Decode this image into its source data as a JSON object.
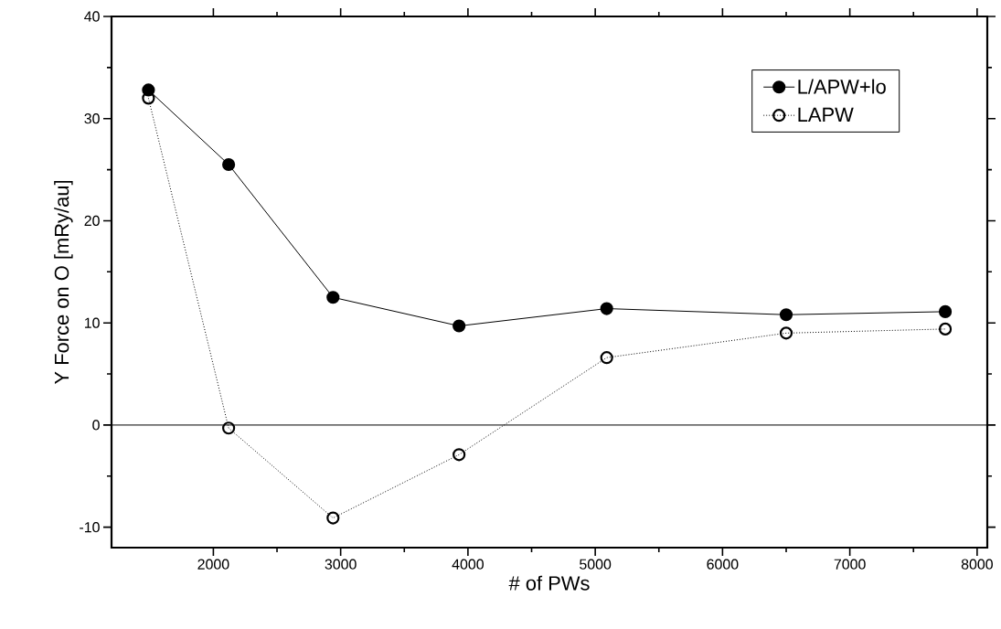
{
  "chart_data": {
    "type": "line",
    "xlabel": "# of PWs",
    "ylabel": "Y Force on O  [mRy/au]",
    "x": [
      1490,
      2120,
      2940,
      3930,
      5090,
      6500,
      7750
    ],
    "series": [
      {
        "name": "L/APW+lo",
        "color": "#000000",
        "marker": "circle",
        "line_style": "solid",
        "values": [
          32.8,
          25.5,
          12.5,
          9.7,
          11.4,
          10.8,
          11.1
        ]
      },
      {
        "name": "LAPW",
        "color": "#000000",
        "marker": "open circle",
        "line_style": "dotted",
        "values": [
          32.0,
          -0.3,
          -9.1,
          -2.9,
          6.6,
          9.0,
          9.4
        ]
      }
    ],
    "xlim": [
      1200,
      8080
    ],
    "ylim": [
      -12,
      40
    ],
    "xticks": [
      2000,
      3000,
      4000,
      5000,
      6000,
      7000,
      8000
    ],
    "yticks": [
      -10,
      0,
      10,
      20,
      30,
      40
    ],
    "ref_lines": [
      {
        "axis": "y",
        "value": 0,
        "color": "#000000",
        "line_style": "solid"
      }
    ],
    "grid": false,
    "legend": "top right"
  }
}
